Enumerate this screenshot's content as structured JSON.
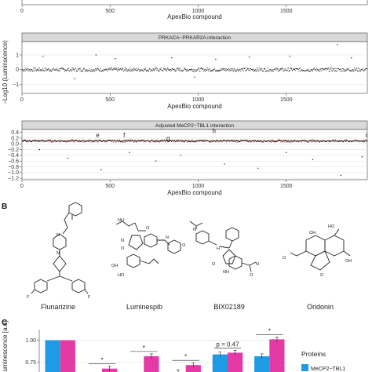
{
  "shared_ylabel": "−Log10 (Luminscence)",
  "panel_letters": {
    "b": "B",
    "c": "C"
  },
  "chart_data": [
    {
      "type": "scatter",
      "title": "",
      "xlabel": "ApexBio compound",
      "x_ticks": [
        "0",
        "500",
        "1000",
        "1500"
      ],
      "x_tick_values": [
        0,
        500,
        1000,
        1500
      ],
      "xlim": [
        0,
        1960
      ],
      "series": [
        {
          "n": 1960,
          "baseline": 0.0
        }
      ]
    },
    {
      "type": "scatter",
      "title": "PRKACA−PRKAR2A interaction",
      "xlabel": "ApexBio compound",
      "x_ticks": [
        "0",
        "500",
        "1000",
        "1500"
      ],
      "x_tick_values": [
        0,
        500,
        1000,
        1500
      ],
      "y_ticks": [
        "1",
        "0",
        "−1"
      ],
      "y_tick_values": [
        1,
        0,
        -1
      ],
      "xlim": [
        0,
        1960
      ],
      "ylim": [
        -1.6,
        1.9
      ],
      "grid": true,
      "series": [
        {
          "n": 1960,
          "baseline": 0.0,
          "spread": 0.12,
          "outliers": [
            [
              120,
              0.9
            ],
            [
              420,
              1.0
            ],
            [
              530,
              0.75
            ],
            [
              850,
              0.8
            ],
            [
              1100,
              0.7
            ],
            [
              1290,
              0.85
            ],
            [
              1520,
              0.9
            ],
            [
              1790,
              1.7
            ],
            [
              1870,
              0.8
            ],
            [
              300,
              -0.6
            ],
            [
              980,
              -0.5
            ]
          ]
        }
      ]
    },
    {
      "type": "scatter",
      "title": "Adjusted MeCP2−TBL1 interaction",
      "xlabel": "ApexBio compound",
      "x_ticks": [
        "0",
        "500",
        "1000",
        "1500"
      ],
      "x_tick_values": [
        0,
        500,
        1000,
        1500
      ],
      "y_ticks": [
        "0.4",
        "0.2",
        "0.0",
        "−0.2",
        "−0.4",
        "−0.6",
        "−0.8",
        "−1.0",
        "−1.2"
      ],
      "y_tick_values": [
        0.4,
        0.2,
        0.0,
        -0.2,
        -0.4,
        -0.6,
        -0.8,
        -1.0,
        -1.2
      ],
      "xlim": [
        0,
        1960
      ],
      "ylim": [
        -1.25,
        0.5
      ],
      "grid": true,
      "threshold": 0.1,
      "threshold_color": "#c0392b",
      "series": [
        {
          "n": 1960,
          "baseline": 0.1,
          "spread": 0.04,
          "outliers": [
            [
              100,
              -0.2
            ],
            [
              260,
              -0.5
            ],
            [
              450,
              -0.9
            ],
            [
              610,
              -0.3
            ],
            [
              760,
              -0.6
            ],
            [
              900,
              -0.4
            ],
            [
              1150,
              -0.7
            ],
            [
              1340,
              -0.85
            ],
            [
              1500,
              -0.3
            ],
            [
              1650,
              -0.55
            ],
            [
              1810,
              -1.1
            ],
            [
              1930,
              -0.45
            ]
          ]
        }
      ],
      "annotations": [
        {
          "label": "e",
          "x": 430,
          "y": 0.22
        },
        {
          "label": "f",
          "x": 580,
          "y": 0.22
        },
        {
          "label": "g",
          "x": 830,
          "y": 0.12
        },
        {
          "label": "h",
          "x": 1090,
          "y": 0.38
        },
        {
          "label": "i",
          "x": 1955,
          "y": 0.22
        }
      ]
    },
    {
      "type": "bar",
      "title": "",
      "ylabel": "Luminescence [a.u]",
      "y_ticks": [
        "1.00",
        "0.75"
      ],
      "y_tick_values": [
        1.0,
        0.75
      ],
      "ylim": [
        0.5,
        1.12
      ],
      "legend_title": "Proteins",
      "legend_position": "right",
      "series": [
        {
          "name": "MeCP2−TBL1",
          "color": "#1e9be4",
          "values": [
            1.0,
            0.52,
            0.52,
            0.64,
            0.84,
            0.82
          ]
        },
        {
          "name": "",
          "color": "#e53aa6",
          "values": [
            1.0,
            0.68,
            0.82,
            0.72,
            0.86,
            1.01
          ]
        }
      ],
      "significance": [
        "",
        "*",
        "*",
        "*",
        "p = 0.47",
        "*"
      ]
    }
  ],
  "compounds": [
    {
      "name": "Flunarizine"
    },
    {
      "name": "Luminespib"
    },
    {
      "name": "BIX02189"
    },
    {
      "name": "Oridonin"
    }
  ],
  "atoms": {
    "F": "F",
    "N": "N",
    "O": "O",
    "OH": "OH",
    "HO": "HO",
    "H": "H",
    "NH": "NH"
  }
}
